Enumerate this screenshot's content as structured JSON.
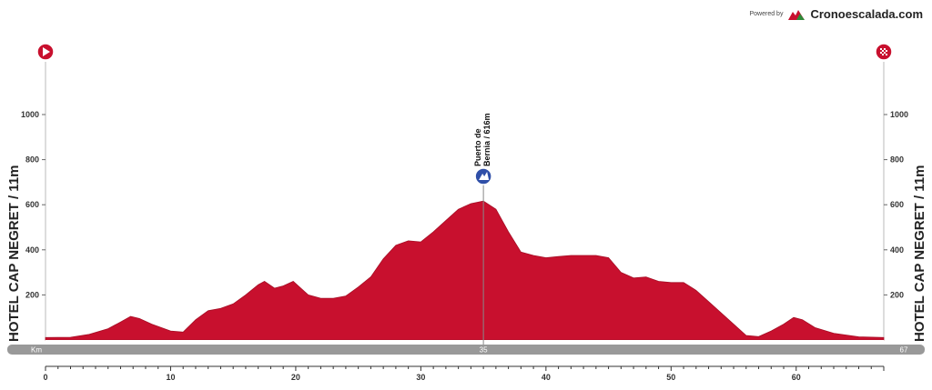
{
  "brand": {
    "powered": "Powered by",
    "name": "Cronoescalada.com"
  },
  "start_label": "HOTEL CAP NEGRET / 11m",
  "finish_label": "HOTEL CAP NEGRET / 11m",
  "colors": {
    "profile": "#c8102e",
    "profile_dark": "#a50d24",
    "band": "#999999",
    "axis": "#333333"
  },
  "chart_data": {
    "type": "area",
    "xlabel": "Km",
    "xlim": [
      0,
      67
    ],
    "ylim": [
      0,
      1200
    ],
    "x_ticks": [
      0,
      10,
      20,
      30,
      40,
      50,
      60
    ],
    "y_ticks": [
      200,
      400,
      600,
      800,
      1000
    ],
    "band_labels": {
      "left": "Km",
      "mid": "35",
      "right": "67"
    },
    "climb": {
      "name_line1": "Puerto de",
      "name_line2": "Bernia / 616m",
      "km": 35,
      "altitude": 616
    },
    "profile": [
      [
        0,
        11
      ],
      [
        2,
        12
      ],
      [
        3.5,
        25
      ],
      [
        5,
        50
      ],
      [
        6,
        80
      ],
      [
        6.8,
        105
      ],
      [
        7.5,
        95
      ],
      [
        8.5,
        70
      ],
      [
        10,
        40
      ],
      [
        11,
        35
      ],
      [
        12,
        90
      ],
      [
        13,
        130
      ],
      [
        14,
        140
      ],
      [
        15,
        160
      ],
      [
        16,
        200
      ],
      [
        17,
        245
      ],
      [
        17.5,
        260
      ],
      [
        18.3,
        230
      ],
      [
        19,
        240
      ],
      [
        19.8,
        260
      ],
      [
        20.3,
        235
      ],
      [
        21,
        200
      ],
      [
        22,
        185
      ],
      [
        23,
        185
      ],
      [
        24,
        195
      ],
      [
        25,
        235
      ],
      [
        26,
        280
      ],
      [
        27,
        360
      ],
      [
        28,
        420
      ],
      [
        29,
        440
      ],
      [
        30,
        435
      ],
      [
        31,
        480
      ],
      [
        32,
        530
      ],
      [
        33,
        580
      ],
      [
        34,
        605
      ],
      [
        35,
        616
      ],
      [
        36,
        580
      ],
      [
        37,
        480
      ],
      [
        38,
        390
      ],
      [
        39,
        375
      ],
      [
        40,
        365
      ],
      [
        41,
        370
      ],
      [
        42,
        375
      ],
      [
        43,
        375
      ],
      [
        44,
        375
      ],
      [
        45,
        365
      ],
      [
        46,
        300
      ],
      [
        47,
        275
      ],
      [
        48,
        280
      ],
      [
        49,
        260
      ],
      [
        50,
        255
      ],
      [
        51,
        255
      ],
      [
        52,
        220
      ],
      [
        53,
        170
      ],
      [
        54,
        120
      ],
      [
        55,
        70
      ],
      [
        56,
        20
      ],
      [
        57,
        15
      ],
      [
        58,
        40
      ],
      [
        59,
        70
      ],
      [
        59.8,
        100
      ],
      [
        60.5,
        90
      ],
      [
        61.5,
        55
      ],
      [
        63,
        30
      ],
      [
        65,
        14
      ],
      [
        67,
        11
      ]
    ]
  }
}
